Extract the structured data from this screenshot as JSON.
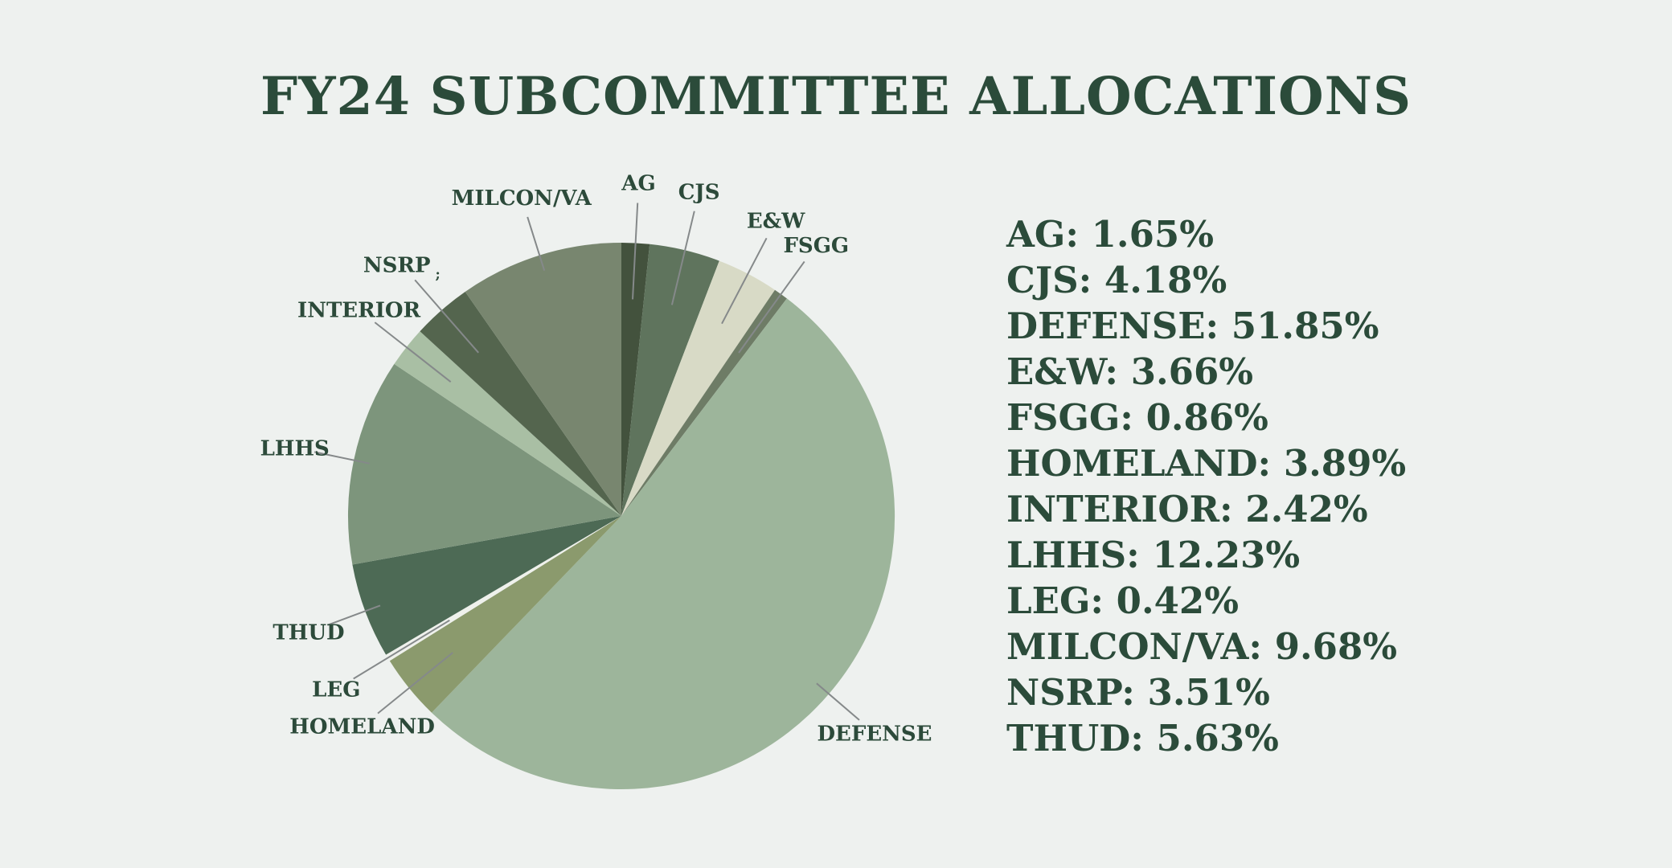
{
  "title": "FY24 SUBCOMMITTEE ALLOCATIONS",
  "colors": {
    "background": "#eef1ef",
    "text": "#2b4b3a",
    "leader_line": "#85898a"
  },
  "chart_data": {
    "type": "pie",
    "title": "FY24 SUBCOMMITTEE ALLOCATIONS",
    "legend_position": "right",
    "start_angle_deg": 0,
    "direction": "clockwise",
    "slices": [
      {
        "label": "AG",
        "value": 1.65,
        "color": "#43523d"
      },
      {
        "label": "CJS",
        "value": 4.18,
        "color": "#5f745d"
      },
      {
        "label": "E&W",
        "value": 3.66,
        "color": "#d8dac6"
      },
      {
        "label": "FSGG",
        "value": 0.86,
        "color": "#6e7c66"
      },
      {
        "label": "DEFENSE",
        "value": 51.85,
        "color": "#9db59b"
      },
      {
        "label": "HOMELAND",
        "value": 3.89,
        "color": "#8b9a6d"
      },
      {
        "label": "LEG",
        "value": 0.42,
        "color": "#eff1ec"
      },
      {
        "label": "THUD",
        "value": 5.63,
        "color": "#4d6a55"
      },
      {
        "label": "LHHS",
        "value": 12.23,
        "color": "#7d957c"
      },
      {
        "label": "INTERIOR",
        "value": 2.42,
        "color": "#a9bfa4"
      },
      {
        "label": "NSRP",
        "value": 3.51,
        "color": "#54654e",
        "suffix": ";"
      },
      {
        "label": "MILCON/VA",
        "value": 9.68,
        "color": "#78866f"
      }
    ]
  },
  "legend": {
    "entries": [
      "AG: 1.65%",
      "CJS: 4.18%",
      "DEFENSE: 51.85%",
      "E&W: 3.66%",
      "FSGG: 0.86%",
      "HOMELAND: 3.89%",
      "INTERIOR: 2.42%",
      "LHHS: 12.23%",
      "LEG: 0.42%",
      "MILCON/VA: 9.68%",
      "NSRP: 3.51%",
      "THUD: 5.63%"
    ]
  }
}
